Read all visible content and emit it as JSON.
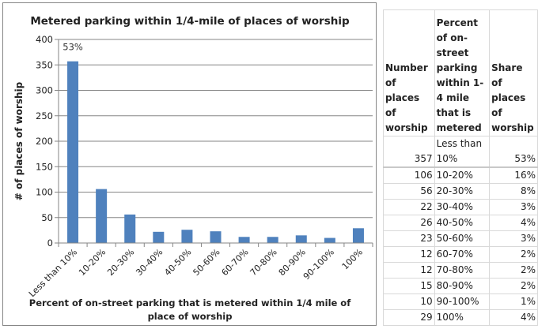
{
  "chart_data": {
    "type": "bar",
    "title": "Metered parking within 1/4-mile of places of worship",
    "xlabel": "Percent of on-street parking that is metered within 1/4 mile of place of worship",
    "xlabel_lines": [
      "Percent of on-street parking that is metered within 1/4 mile of",
      "place of worship"
    ],
    "ylabel": "# of places of worship",
    "categories": [
      "Less than 10%",
      "10-20%",
      "20-30%",
      "30-40%",
      "40-50%",
      "50-60%",
      "60-70%",
      "70-80%",
      "80-90%",
      "90-100%",
      "100%"
    ],
    "values": [
      357,
      106,
      56,
      22,
      26,
      23,
      12,
      12,
      15,
      10,
      29
    ],
    "ylim": [
      0,
      400
    ],
    "yticks": [
      0,
      50,
      100,
      150,
      200,
      250,
      300,
      350,
      400
    ],
    "grid": true,
    "annotations": [
      {
        "category": "Less than 10%",
        "text": "53%"
      }
    ],
    "bar_color": "#4f81bd"
  },
  "table": {
    "headers": [
      "Number of places of worship",
      "Percent of on-street parking within 1-4 mile that is metered",
      "Share of places of worship"
    ],
    "rows": [
      {
        "count": "357",
        "range": "Less than 10%",
        "share": "53%"
      },
      {
        "count": "106",
        "range": "10-20%",
        "share": "16%"
      },
      {
        "count": "56",
        "range": "20-30%",
        "share": "8%"
      },
      {
        "count": "22",
        "range": "30-40%",
        "share": "3%"
      },
      {
        "count": "26",
        "range": "40-50%",
        "share": "4%"
      },
      {
        "count": "23",
        "range": "50-60%",
        "share": "3%"
      },
      {
        "count": "12",
        "range": "60-70%",
        "share": "2%"
      },
      {
        "count": "12",
        "range": "70-80%",
        "share": "2%"
      },
      {
        "count": "15",
        "range": "80-90%",
        "share": "2%"
      },
      {
        "count": "10",
        "range": "90-100%",
        "share": "1%"
      },
      {
        "count": "29",
        "range": "100%",
        "share": "4%"
      }
    ]
  }
}
